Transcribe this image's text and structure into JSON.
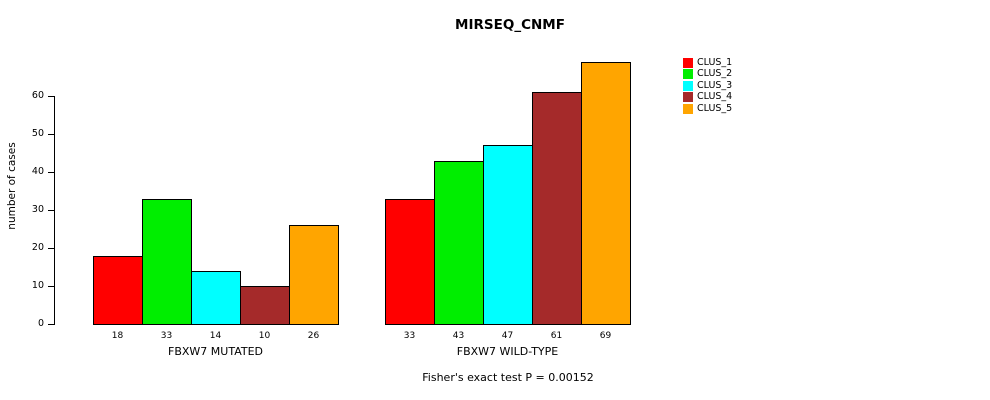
{
  "chart_data": {
    "type": "bar",
    "title": "MIRSEQ_CNMF",
    "ylabel": "number of cases",
    "footnote": "Fisher's exact test P = 0.00152",
    "groups": [
      {
        "label": "FBXW7 MUTATED",
        "values": [
          18,
          33,
          14,
          10,
          26
        ]
      },
      {
        "label": "FBXW7 WILD-TYPE",
        "values": [
          33,
          43,
          47,
          61,
          69
        ]
      }
    ],
    "series_names": [
      "CLUS_1",
      "CLUS_2",
      "CLUS_3",
      "CLUS_4",
      "CLUS_5"
    ],
    "series_colors": [
      "#ff0000",
      "#00ee00",
      "#00ffff",
      "#a52a2a",
      "#ffa500"
    ],
    "yticks": [
      0,
      10,
      20,
      30,
      40,
      50,
      60
    ],
    "ylim": [
      0,
      69
    ],
    "grid": false,
    "legend_position": "right"
  }
}
